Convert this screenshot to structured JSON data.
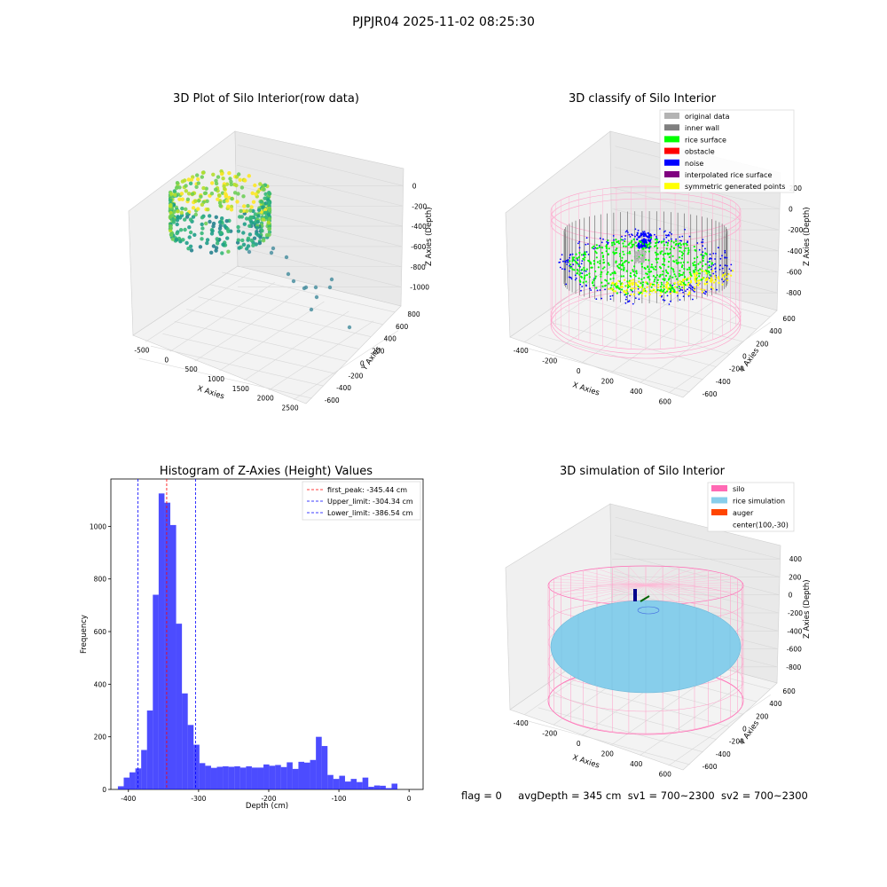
{
  "figure_title": "PJPJR04 2025-11-02 08:25:30",
  "status_line": {
    "flag": "flag = 0",
    "avg_depth": "avgDepth = 345 cm",
    "sv1": "sv1 = 700~2300",
    "sv2": "sv2 = 700~2300"
  },
  "chart_data": [
    {
      "type": "scatter",
      "title": "3D Plot of Silo Interior(row data)",
      "xlabel": "X Axies",
      "ylabel": "Y Axies",
      "zlabel": "Z Axies (Depth)",
      "x_ticks": [
        "-500",
        "0",
        "500",
        "1000",
        "1500",
        "2000",
        "2500"
      ],
      "y_ticks": [
        "-600",
        "-400",
        "-200",
        "0",
        "200",
        "400",
        "600",
        "800"
      ],
      "z_ticks": [
        "-1000",
        "-800",
        "-600",
        "-400",
        "-200",
        "0"
      ],
      "grid": true,
      "colormap": "viridis"
    },
    {
      "type": "scatter",
      "title": "3D classify of Silo Interior",
      "xlabel": "X Axies",
      "ylabel": "Y Axies",
      "zlabel": "Z Axies (Depth)",
      "x_ticks": [
        "-400",
        "-200",
        "0",
        "200",
        "400",
        "600"
      ],
      "y_ticks": [
        "-600",
        "-400",
        "-200",
        "0",
        "200",
        "400",
        "600"
      ],
      "z_ticks": [
        "-800",
        "-600",
        "-400",
        "-200",
        "0",
        "200"
      ],
      "grid": true,
      "legend_position": "top-right",
      "legend": [
        {
          "label": "original data",
          "color": "#b3b3b3"
        },
        {
          "label": "inner wall",
          "color": "#808080"
        },
        {
          "label": "rice surface",
          "color": "#00ff00"
        },
        {
          "label": "obstacle",
          "color": "#ff0000"
        },
        {
          "label": "noise",
          "color": "#0000ff"
        },
        {
          "label": "interpolated rice surface",
          "color": "#800080"
        },
        {
          "label": "symmetric generated points",
          "color": "#ffff00"
        }
      ]
    },
    {
      "type": "bar",
      "title": "Histogram of Z-Axies (Height) Values",
      "xlabel": "Depth (cm)",
      "ylabel": "Frequency",
      "xlim": [
        -425,
        20
      ],
      "ylim": [
        0,
        1180
      ],
      "x_ticks": [
        -400,
        -300,
        -200,
        -100,
        0
      ],
      "y_ticks": [
        0,
        200,
        400,
        600,
        800,
        1000
      ],
      "bar_color": "#0000ff",
      "bins_start": -415,
      "bin_width": 8.3,
      "values": [
        12,
        45,
        65,
        80,
        150,
        300,
        740,
        1125,
        1090,
        1005,
        630,
        365,
        245,
        170,
        100,
        90,
        82,
        86,
        88,
        86,
        88,
        83,
        88,
        83,
        83,
        95,
        90,
        93,
        85,
        103,
        78,
        105,
        102,
        112,
        200,
        165,
        55,
        40,
        52,
        30,
        40,
        28,
        45,
        10,
        15,
        14,
        5,
        22
      ],
      "lines": [
        {
          "label": "first_peak: -345.44 cm",
          "x": -345.44,
          "color": "#ff0000"
        },
        {
          "label": "Upper_limit: -304.34 cm",
          "x": -304.34,
          "color": "#0000ff"
        },
        {
          "label": "Lower_limit: -386.54 cm",
          "x": -386.54,
          "color": "#0000ff"
        }
      ],
      "legend_position": "top-right"
    },
    {
      "type": "scatter",
      "title": "3D simulation of Silo Interior",
      "xlabel": "X Axies",
      "ylabel": "Y Axies",
      "zlabel": "Z Axies (Depth)",
      "x_ticks": [
        "-400",
        "-200",
        "0",
        "200",
        "400",
        "600"
      ],
      "y_ticks": [
        "-600",
        "-400",
        "-200",
        "0",
        "200",
        "400",
        "600"
      ],
      "z_ticks": [
        "-800",
        "-600",
        "-400",
        "-200",
        "0",
        "200",
        "400"
      ],
      "grid": true,
      "legend_position": "top-right",
      "legend": [
        {
          "label": "silo",
          "color": "#ff69b4"
        },
        {
          "label": "rice simulation",
          "color": "#87ceeb"
        },
        {
          "label": "auger",
          "color": "#ff4500"
        },
        {
          "label": "center(100,-30)",
          "color": ""
        }
      ]
    }
  ]
}
